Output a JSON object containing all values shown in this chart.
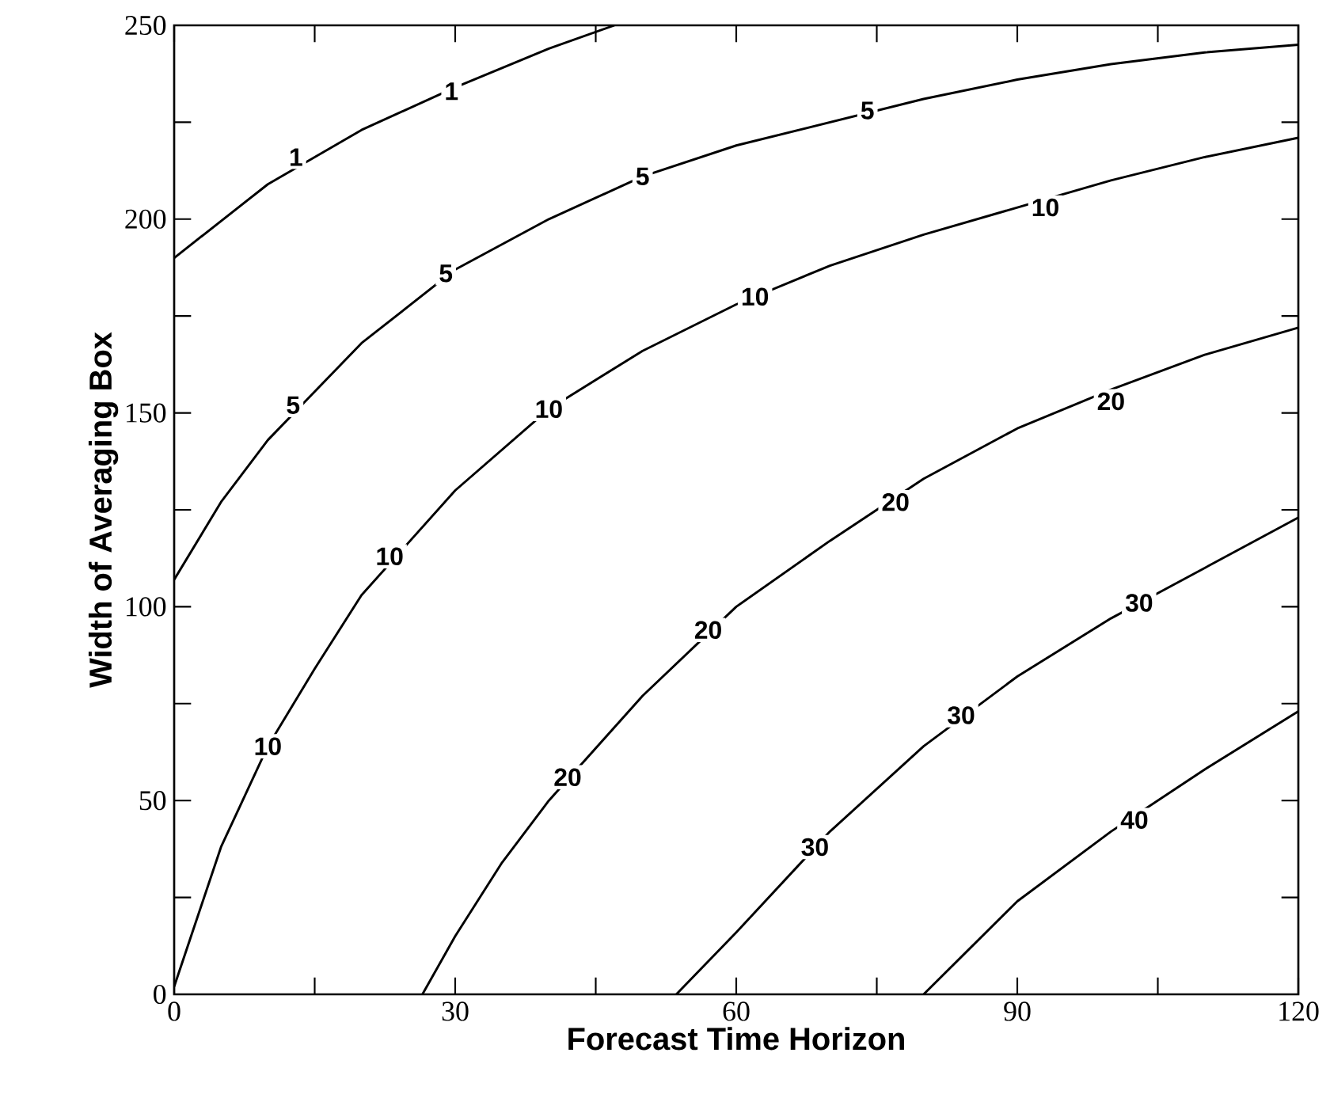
{
  "chart_data": {
    "type": "line",
    "xlabel": "Forecast Time Horizon",
    "ylabel": "Width of Averaging Box",
    "xlim": [
      0,
      120
    ],
    "ylim": [
      0,
      250
    ],
    "xticks": [
      0,
      {
        "value": 15,
        "label": null
      },
      30,
      {
        "value": 45,
        "label": null
      },
      60,
      {
        "value": 75,
        "label": null
      },
      90,
      {
        "value": 105,
        "label": null
      },
      120
    ],
    "yticks": [
      0,
      {
        "value": 25,
        "label": null
      },
      50,
      {
        "value": 75,
        "label": null
      },
      100,
      {
        "value": 125,
        "label": null
      },
      150,
      {
        "value": 175,
        "label": null
      },
      200,
      {
        "value": 225,
        "label": null
      },
      250
    ],
    "line_style": "solid",
    "series": [
      {
        "color": "#000000",
        "x": [
          0,
          10,
          20,
          30,
          40,
          47
        ],
        "values": [
          190,
          209,
          223,
          234,
          244,
          250
        ]
      },
      {
        "color": "#000000",
        "x": [
          0,
          5,
          10,
          20,
          30,
          40,
          50,
          60,
          70,
          80,
          90,
          100,
          110,
          120
        ],
        "values": [
          107,
          127,
          143,
          168,
          187,
          200,
          211,
          219,
          225,
          231,
          236,
          240,
          243,
          245
        ]
      },
      {
        "color": "#000000",
        "x": [
          0,
          5,
          10,
          15,
          20,
          30,
          40,
          50,
          60,
          70,
          80,
          90,
          100,
          110,
          120
        ],
        "values": [
          2,
          38,
          64,
          84,
          103,
          130,
          151,
          166,
          178,
          188,
          196,
          203,
          210,
          216,
          221
        ]
      },
      {
        "color": "#000000",
        "x": [
          26.5,
          30,
          35,
          40,
          50,
          60,
          70,
          80,
          90,
          100,
          110,
          120
        ],
        "values": [
          0,
          15,
          34,
          50,
          77,
          100,
          117,
          133,
          146,
          156,
          165,
          172
        ]
      },
      {
        "color": "#000000",
        "x": [
          53.6,
          60,
          70,
          80,
          90,
          100,
          110,
          120
        ],
        "values": [
          0,
          16,
          42,
          64,
          82,
          97,
          110,
          123
        ]
      },
      {
        "color": "#000000",
        "x": [
          80,
          90,
          100,
          110,
          120
        ],
        "values": [
          0,
          24,
          42,
          58,
          73
        ]
      }
    ],
    "annotations": [
      {
        "text": "1",
        "x": 13,
        "y": 216
      },
      {
        "text": "1",
        "x": 29.6,
        "y": 233
      },
      {
        "text": "5",
        "x": 12.7,
        "y": 152
      },
      {
        "text": "5",
        "x": 29,
        "y": 186
      },
      {
        "text": "5",
        "x": 50,
        "y": 211
      },
      {
        "text": "5",
        "x": 74,
        "y": 228
      },
      {
        "text": "10",
        "x": 10,
        "y": 64
      },
      {
        "text": "10",
        "x": 23,
        "y": 113
      },
      {
        "text": "10",
        "x": 40,
        "y": 151
      },
      {
        "text": "10",
        "x": 62,
        "y": 180
      },
      {
        "text": "10",
        "x": 93,
        "y": 203
      },
      {
        "text": "20",
        "x": 42,
        "y": 56
      },
      {
        "text": "20",
        "x": 57,
        "y": 94
      },
      {
        "text": "20",
        "x": 77,
        "y": 127
      },
      {
        "text": "20",
        "x": 100,
        "y": 153
      },
      {
        "text": "30",
        "x": 68.4,
        "y": 38
      },
      {
        "text": "30",
        "x": 84,
        "y": 72
      },
      {
        "text": "30",
        "x": 103,
        "y": 101
      },
      {
        "text": "40",
        "x": 102.5,
        "y": 45
      }
    ]
  }
}
